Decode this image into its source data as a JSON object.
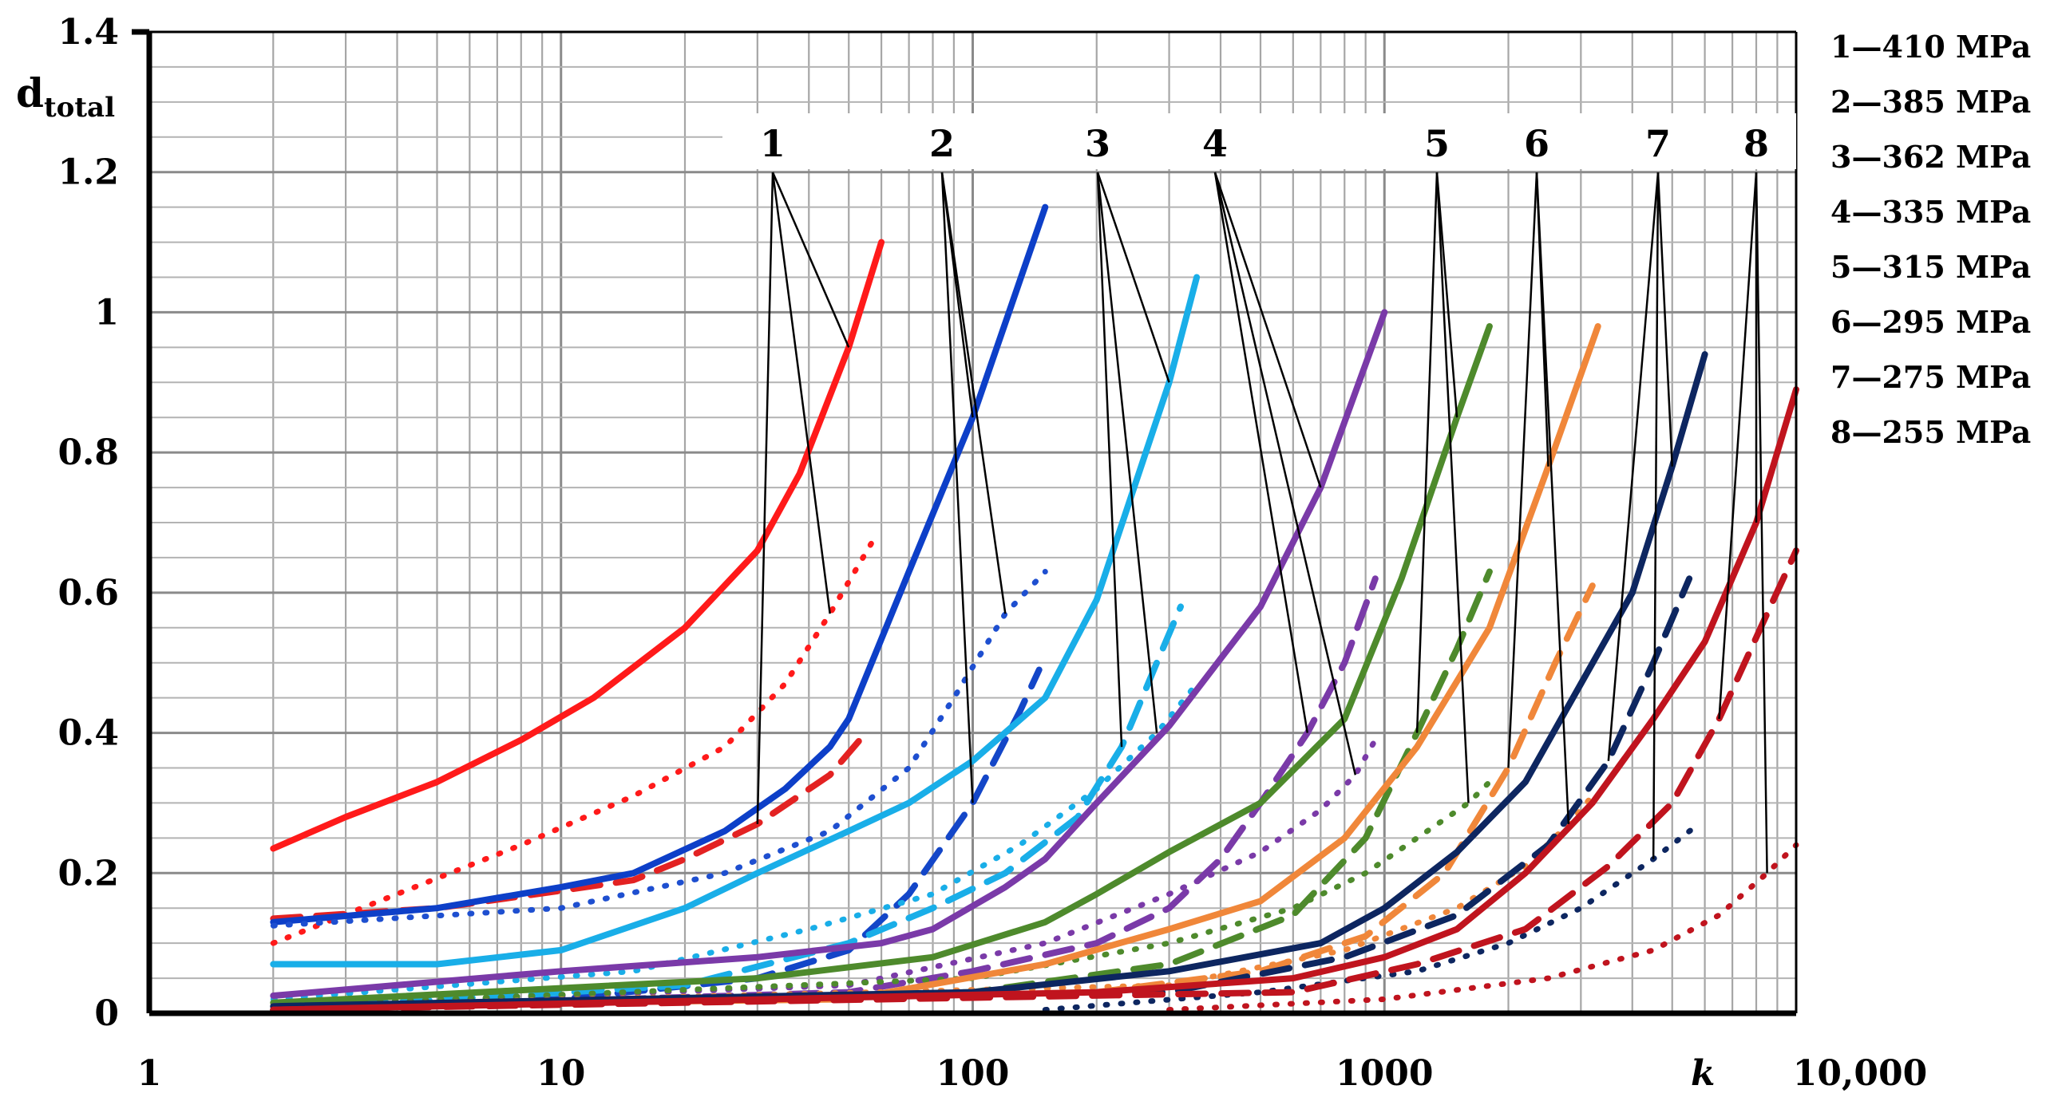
{
  "chart_data": {
    "type": "line",
    "title": "",
    "x_scale": "log",
    "xlabel": "k",
    "ylabel": "d_total",
    "ylabel_main": "d",
    "ylabel_sub": "total",
    "xlim": [
      1,
      10000
    ],
    "ylim": [
      0,
      1.4
    ],
    "grid": true,
    "x_tick_labels": [
      "1",
      "10",
      "100",
      "1000",
      "10,000"
    ],
    "y_tick_labels": [
      "0",
      "0.2",
      "0.4",
      "0.6",
      "0.8",
      "1",
      "1.2",
      "1.4"
    ],
    "line_styles": [
      "solid",
      "dashed",
      "dotted"
    ],
    "series": [
      {
        "group": "1",
        "name": "410 MPa",
        "color": "#ff1a1a",
        "style": "solid",
        "points": [
          [
            2,
            0.235
          ],
          [
            3,
            0.28
          ],
          [
            5,
            0.33
          ],
          [
            8,
            0.39
          ],
          [
            12,
            0.45
          ],
          [
            20,
            0.55
          ],
          [
            30,
            0.66
          ],
          [
            38,
            0.77
          ],
          [
            50,
            0.95
          ],
          [
            60,
            1.1
          ]
        ]
      },
      {
        "group": "1",
        "name": "410 MPa",
        "color": "#e32222",
        "style": "dashed",
        "points": [
          [
            2,
            0.135
          ],
          [
            5,
            0.15
          ],
          [
            10,
            0.175
          ],
          [
            15,
            0.19
          ],
          [
            20,
            0.22
          ],
          [
            30,
            0.27
          ],
          [
            45,
            0.34
          ],
          [
            55,
            0.4
          ]
        ]
      },
      {
        "group": "1",
        "name": "410 MPa",
        "color": "#ff1a1a",
        "style": "dotted",
        "points": [
          [
            2,
            0.1
          ],
          [
            4,
            0.17
          ],
          [
            8,
            0.24
          ],
          [
            15,
            0.31
          ],
          [
            25,
            0.38
          ],
          [
            35,
            0.47
          ],
          [
            45,
            0.57
          ],
          [
            58,
            0.68
          ]
        ]
      },
      {
        "group": "2",
        "name": "385 MPa",
        "color": "#0d3fc8",
        "style": "solid",
        "points": [
          [
            2,
            0.13
          ],
          [
            5,
            0.15
          ],
          [
            10,
            0.18
          ],
          [
            15,
            0.2
          ],
          [
            25,
            0.26
          ],
          [
            35,
            0.32
          ],
          [
            45,
            0.38
          ],
          [
            50,
            0.42
          ],
          [
            70,
            0.63
          ],
          [
            100,
            0.85
          ],
          [
            150,
            1.15
          ]
        ]
      },
      {
        "group": "2",
        "name": "385 MPa",
        "color": "#1346c8",
        "style": "dashed",
        "points": [
          [
            2,
            0.005
          ],
          [
            10,
            0.02
          ],
          [
            30,
            0.05
          ],
          [
            50,
            0.09
          ],
          [
            70,
            0.17
          ],
          [
            100,
            0.3
          ],
          [
            130,
            0.43
          ],
          [
            145,
            0.49
          ]
        ]
      },
      {
        "group": "2",
        "name": "385 MPa",
        "color": "#1e4fd0",
        "style": "dotted",
        "points": [
          [
            2,
            0.125
          ],
          [
            10,
            0.15
          ],
          [
            25,
            0.2
          ],
          [
            45,
            0.26
          ],
          [
            70,
            0.35
          ],
          [
            90,
            0.45
          ],
          [
            120,
            0.57
          ],
          [
            150,
            0.63
          ]
        ]
      },
      {
        "group": "3",
        "name": "362 MPa",
        "color": "#19aee8",
        "style": "solid",
        "points": [
          [
            2,
            0.07
          ],
          [
            5,
            0.07
          ],
          [
            10,
            0.09
          ],
          [
            20,
            0.15
          ],
          [
            30,
            0.2
          ],
          [
            50,
            0.26
          ],
          [
            70,
            0.3
          ],
          [
            100,
            0.36
          ],
          [
            150,
            0.45
          ],
          [
            200,
            0.59
          ],
          [
            300,
            0.9
          ],
          [
            350,
            1.05
          ]
        ]
      },
      {
        "group": "3",
        "name": "362 MPa",
        "color": "#19aee8",
        "style": "dashed",
        "points": [
          [
            2,
            0.005
          ],
          [
            20,
            0.04
          ],
          [
            50,
            0.1
          ],
          [
            80,
            0.15
          ],
          [
            120,
            0.2
          ],
          [
            180,
            0.28
          ],
          [
            230,
            0.38
          ],
          [
            280,
            0.5
          ],
          [
            320,
            0.58
          ]
        ]
      },
      {
        "group": "3",
        "name": "362 MPa",
        "color": "#19aee8",
        "style": "dotted",
        "points": [
          [
            2,
            0.02
          ],
          [
            15,
            0.06
          ],
          [
            40,
            0.12
          ],
          [
            80,
            0.17
          ],
          [
            130,
            0.24
          ],
          [
            200,
            0.32
          ],
          [
            280,
            0.4
          ],
          [
            350,
            0.47
          ]
        ]
      },
      {
        "group": "4",
        "name": "335 MPa",
        "color": "#7a3aa8",
        "style": "solid",
        "points": [
          [
            2,
            0.025
          ],
          [
            10,
            0.06
          ],
          [
            30,
            0.08
          ],
          [
            60,
            0.1
          ],
          [
            80,
            0.12
          ],
          [
            120,
            0.18
          ],
          [
            150,
            0.22
          ],
          [
            200,
            0.3
          ],
          [
            300,
            0.41
          ],
          [
            500,
            0.58
          ],
          [
            700,
            0.75
          ],
          [
            1000,
            1.0
          ]
        ]
      },
      {
        "group": "4",
        "name": "335 MPa",
        "color": "#7a3aa8",
        "style": "dashed",
        "points": [
          [
            2,
            0.005
          ],
          [
            50,
            0.03
          ],
          [
            100,
            0.06
          ],
          [
            200,
            0.1
          ],
          [
            300,
            0.15
          ],
          [
            400,
            0.22
          ],
          [
            500,
            0.3
          ],
          [
            650,
            0.4
          ],
          [
            800,
            0.5
          ],
          [
            950,
            0.62
          ]
        ]
      },
      {
        "group": "4",
        "name": "335 MPa",
        "color": "#7a3aa8",
        "style": "dotted",
        "points": [
          [
            2,
            0.01
          ],
          [
            50,
            0.04
          ],
          [
            150,
            0.1
          ],
          [
            300,
            0.17
          ],
          [
            500,
            0.23
          ],
          [
            700,
            0.29
          ],
          [
            850,
            0.34
          ],
          [
            950,
            0.39
          ]
        ]
      },
      {
        "group": "5",
        "name": "315 MPa",
        "color": "#4e8a2c",
        "style": "solid",
        "points": [
          [
            2,
            0.015
          ],
          [
            30,
            0.05
          ],
          [
            80,
            0.08
          ],
          [
            150,
            0.13
          ],
          [
            200,
            0.17
          ],
          [
            300,
            0.23
          ],
          [
            500,
            0.3
          ],
          [
            800,
            0.42
          ],
          [
            1100,
            0.62
          ],
          [
            1500,
            0.85
          ],
          [
            1800,
            0.98
          ]
        ]
      },
      {
        "group": "5",
        "name": "315 MPa",
        "color": "#4e8a2c",
        "style": "dashed",
        "points": [
          [
            2,
            0.005
          ],
          [
            100,
            0.03
          ],
          [
            300,
            0.07
          ],
          [
            600,
            0.14
          ],
          [
            900,
            0.25
          ],
          [
            1200,
            0.4
          ],
          [
            1500,
            0.52
          ],
          [
            1800,
            0.63
          ]
        ]
      },
      {
        "group": "5",
        "name": "315 MPa",
        "color": "#4e8a2c",
        "style": "dotted",
        "points": [
          [
            2,
            0.01
          ],
          [
            100,
            0.05
          ],
          [
            300,
            0.1
          ],
          [
            600,
            0.15
          ],
          [
            900,
            0.2
          ],
          [
            1200,
            0.25
          ],
          [
            1600,
            0.3
          ],
          [
            1800,
            0.33
          ]
        ]
      },
      {
        "group": "6",
        "name": "295 MPa",
        "color": "#f0873a",
        "style": "solid",
        "points": [
          [
            2,
            0.01
          ],
          [
            50,
            0.02
          ],
          [
            150,
            0.07
          ],
          [
            300,
            0.12
          ],
          [
            500,
            0.16
          ],
          [
            800,
            0.25
          ],
          [
            1200,
            0.38
          ],
          [
            1800,
            0.55
          ],
          [
            2500,
            0.78
          ],
          [
            3300,
            0.98
          ]
        ]
      },
      {
        "group": "6",
        "name": "295 MPa",
        "color": "#f0873a",
        "style": "dashed",
        "points": [
          [
            2,
            0.005
          ],
          [
            200,
            0.03
          ],
          [
            500,
            0.06
          ],
          [
            900,
            0.11
          ],
          [
            1400,
            0.2
          ],
          [
            2000,
            0.35
          ],
          [
            2600,
            0.5
          ],
          [
            3200,
            0.61
          ]
        ]
      },
      {
        "group": "6",
        "name": "295 MPa",
        "color": "#f0873a",
        "style": "dotted",
        "points": [
          [
            2,
            0.01
          ],
          [
            300,
            0.04
          ],
          [
            800,
            0.09
          ],
          [
            1500,
            0.15
          ],
          [
            2200,
            0.21
          ],
          [
            2800,
            0.27
          ],
          [
            3200,
            0.31
          ]
        ]
      },
      {
        "group": "7",
        "name": "275 MPa",
        "color": "#0d2660",
        "style": "solid",
        "points": [
          [
            2,
            0.01
          ],
          [
            100,
            0.03
          ],
          [
            300,
            0.06
          ],
          [
            700,
            0.1
          ],
          [
            1000,
            0.15
          ],
          [
            1500,
            0.23
          ],
          [
            2200,
            0.33
          ],
          [
            3000,
            0.47
          ],
          [
            4000,
            0.6
          ],
          [
            5000,
            0.78
          ],
          [
            6000,
            0.94
          ]
        ]
      },
      {
        "group": "7",
        "name": "275 MPa",
        "color": "#0d2660",
        "style": "dashed",
        "points": [
          [
            2,
            0.005
          ],
          [
            300,
            0.03
          ],
          [
            800,
            0.08
          ],
          [
            1500,
            0.14
          ],
          [
            2500,
            0.24
          ],
          [
            3500,
            0.36
          ],
          [
            4500,
            0.5
          ],
          [
            5500,
            0.62
          ]
        ]
      },
      {
        "group": "7",
        "name": "275 MPa",
        "color": "#0d2660",
        "style": "dotted",
        "points": [
          [
            150,
            0.005
          ],
          [
            500,
            0.03
          ],
          [
            1200,
            0.06
          ],
          [
            2000,
            0.1
          ],
          [
            3000,
            0.15
          ],
          [
            4500,
            0.22
          ],
          [
            5800,
            0.27
          ]
        ]
      },
      {
        "group": "8",
        "name": "255 MPa",
        "color": "#c0141e",
        "style": "solid",
        "points": [
          [
            2,
            0.005
          ],
          [
            200,
            0.03
          ],
          [
            600,
            0.05
          ],
          [
            1000,
            0.08
          ],
          [
            1500,
            0.12
          ],
          [
            2200,
            0.2
          ],
          [
            3200,
            0.3
          ],
          [
            4500,
            0.42
          ],
          [
            6000,
            0.53
          ],
          [
            8000,
            0.7
          ],
          [
            10000,
            0.89
          ]
        ]
      },
      {
        "group": "8",
        "name": "255 MPa",
        "color": "#c0141e",
        "style": "dashed",
        "points": [
          [
            2,
            0.005
          ],
          [
            600,
            0.03
          ],
          [
            1200,
            0.07
          ],
          [
            2200,
            0.12
          ],
          [
            3500,
            0.21
          ],
          [
            5000,
            0.3
          ],
          [
            6500,
            0.42
          ],
          [
            8500,
            0.57
          ],
          [
            10000,
            0.66
          ]
        ]
      },
      {
        "group": "8",
        "name": "255 MPa",
        "color": "#c0141e",
        "style": "dotted",
        "points": [
          [
            300,
            0.005
          ],
          [
            1000,
            0.02
          ],
          [
            2500,
            0.05
          ],
          [
            4500,
            0.09
          ],
          [
            6500,
            0.14
          ],
          [
            8500,
            0.2
          ],
          [
            10000,
            0.24
          ]
        ]
      }
    ],
    "curve_labels": [
      "1",
      "2",
      "3",
      "4",
      "5",
      "6",
      "7",
      "8"
    ],
    "legend": [
      {
        "id": "1",
        "value": "410 MPa"
      },
      {
        "id": "2",
        "value": "385 MPa"
      },
      {
        "id": "3",
        "value": "362 MPa"
      },
      {
        "id": "4",
        "value": "335 MPa"
      },
      {
        "id": "5",
        "value": "315 MPa"
      },
      {
        "id": "6",
        "value": "295 MPa"
      },
      {
        "id": "7",
        "value": "275 MPa"
      },
      {
        "id": "8",
        "value": "255 MPa"
      }
    ],
    "legend_separator": "—",
    "legend_position": "right"
  }
}
